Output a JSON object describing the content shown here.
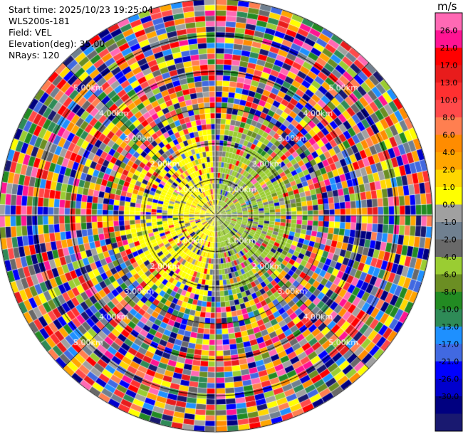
{
  "header": {
    "start_time": "Start time: 2025/10/23 19:25:04",
    "site": "WLS200s-181",
    "field": "Field: VEL",
    "elevation": "Elevation(deg): 35.00",
    "nrays": "NRays: 120"
  },
  "colorbar": {
    "unit": "m/s",
    "ticks": [
      "26.0",
      "21.0",
      "17.0",
      "13.0",
      "10.0",
      "8.0",
      "6.0",
      "4.0",
      "2.0",
      "1.0",
      "0.0",
      "-1.0",
      "-2.0",
      "-4.0",
      "-6.0",
      "-8.0",
      "-10.0",
      "-13.0",
      "-17.0",
      "-21.0",
      "-26.0",
      "-30.0"
    ],
    "colors": [
      "#ff69b4",
      "#ff1493",
      "#ff0000",
      "#e81c1c",
      "#ff3030",
      "#ff4a4a",
      "#ff7f50",
      "#ff8c00",
      "#ffa500",
      "#ffd700",
      "#ffff00",
      "#a0a0a0",
      "#708090",
      "#696969",
      "#9acd32",
      "#6b8e23",
      "#228b22",
      "#2e8b57",
      "#1e90ff",
      "#4169e1",
      "#0000ff",
      "#0000cd",
      "#000080",
      "#191970"
    ]
  },
  "chart_data": {
    "type": "ppi-radar",
    "field": "VEL",
    "unit": "m/s",
    "range_rings_km": [
      1.0,
      2.0,
      3.0,
      4.0,
      5.0
    ],
    "ring_labels": [
      "1.00km",
      "2.00km",
      "3.00km",
      "4.00km",
      "5.00km"
    ],
    "azimuth_lines_deg": [
      0,
      45,
      90,
      135,
      180,
      225,
      270,
      315
    ],
    "nrays": 120,
    "max_range_km": 6.0,
    "near_field": {
      "approaching_side": "west",
      "approaching_ms": [
        1,
        4
      ],
      "receding_side": "east",
      "receding_ms": [
        -4,
        -1
      ],
      "extent_km": 3.0
    },
    "far_field": "noise"
  }
}
